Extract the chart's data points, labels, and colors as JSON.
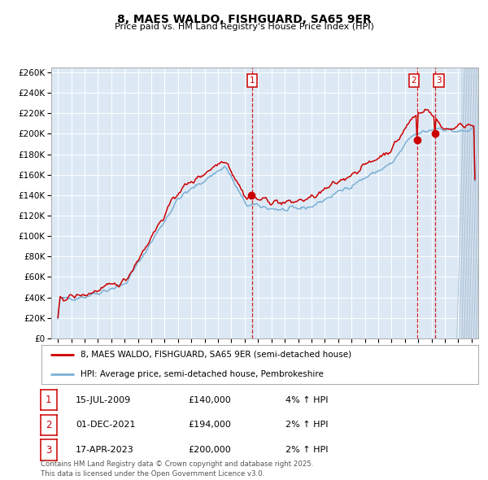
{
  "title": "8, MAES WALDO, FISHGUARD, SA65 9ER",
  "subtitle": "Price paid vs. HM Land Registry's House Price Index (HPI)",
  "line1_label": "8, MAES WALDO, FISHGUARD, SA65 9ER (semi-detached house)",
  "line2_label": "HPI: Average price, semi-detached house, Pembrokeshire",
  "line1_color": "#cc0000",
  "line2_color": "#7ab0d4",
  "plot_bg_color": "#dce9f5",
  "ylim": [
    0,
    265000
  ],
  "yticks": [
    0,
    20000,
    40000,
    60000,
    80000,
    100000,
    120000,
    140000,
    160000,
    180000,
    200000,
    220000,
    240000,
    260000
  ],
  "sale1_date": "15-JUL-2009",
  "sale1_price": 140000,
  "sale1_pct": "4%",
  "sale2_date": "01-DEC-2021",
  "sale2_price": 194000,
  "sale2_pct": "2%",
  "sale3_date": "17-APR-2023",
  "sale3_price": 200000,
  "sale3_pct": "2%",
  "footer": "Contains HM Land Registry data © Crown copyright and database right 2025.\nThis data is licensed under the Open Government Licence v3.0.",
  "sale1_x": 2009.54,
  "sale2_x": 2021.92,
  "sale3_x": 2023.29,
  "xlim_left": 1994.5,
  "xlim_right": 2026.5
}
